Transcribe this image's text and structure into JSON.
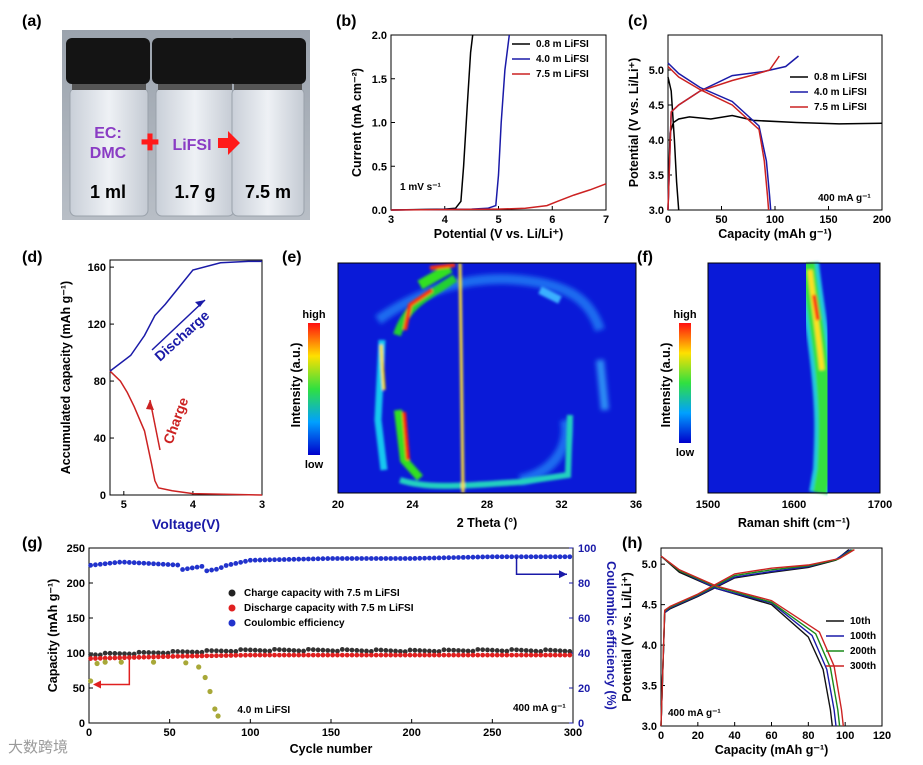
{
  "panel_labels": {
    "a": "(a)",
    "b": "(b)",
    "c": "(c)",
    "d": "(d)",
    "e": "(e)",
    "f": "(f)",
    "g": "(g)",
    "h": "(h)"
  },
  "photo": {
    "label_left": "EC:\nDMC",
    "label_mid": "LiFSI",
    "vial1": "1 ml",
    "vial2": "1.7 g",
    "vial3": "7.5 m",
    "colors": {
      "text": "#8a3cc4",
      "symbol": "#ff1a1a"
    }
  },
  "watermark": "大数跨境",
  "chart_data": [
    {
      "id": "b",
      "type": "line",
      "xlabel": "Potential (V vs. Li/Li⁺)",
      "ylabel": "Current (mA cm⁻²)",
      "xlim": [
        3,
        7
      ],
      "ylim": [
        0,
        2.0
      ],
      "xticks": [
        "3",
        "4",
        "5",
        "6",
        "7"
      ],
      "yticks": [
        "0.0",
        "0.5",
        "1.0",
        "1.5",
        "2.0"
      ],
      "annotation": "1 mV s⁻¹",
      "legend_position": "top-right",
      "series": [
        {
          "name": "0.8 m LiFSI",
          "color": "#000000",
          "x": [
            3,
            4.0,
            4.2,
            4.3,
            4.35,
            4.42,
            4.48,
            4.52
          ],
          "y": [
            0,
            0.01,
            0.02,
            0.1,
            0.5,
            1.2,
            1.8,
            2.0
          ]
        },
        {
          "name": "4.0 m LiFSI",
          "color": "#1a1aa8",
          "x": [
            3,
            4.5,
            4.8,
            4.95,
            5.0,
            5.05,
            5.12,
            5.2
          ],
          "y": [
            0,
            0.01,
            0.02,
            0.05,
            0.4,
            1.0,
            1.6,
            2.0
          ]
        },
        {
          "name": "7.5 m LiFSI",
          "color": "#cc2222",
          "x": [
            3,
            5.0,
            5.5,
            5.9,
            6.1,
            6.4,
            6.7,
            7.0
          ],
          "y": [
            0,
            0.01,
            0.02,
            0.05,
            0.1,
            0.17,
            0.23,
            0.3
          ]
        }
      ]
    },
    {
      "id": "c",
      "type": "line",
      "xlabel": "Capacity (mAh g⁻¹)",
      "ylabel": "Potential (V vs. Li/Li⁺)",
      "xlim": [
        0,
        200
      ],
      "ylim": [
        3.0,
        5.5
      ],
      "xticks": [
        "0",
        "50",
        "100",
        "150",
        "200"
      ],
      "yticks": [
        "3.0",
        "3.5",
        "4.0",
        "4.5",
        "5.0"
      ],
      "annotation": "400 mA g⁻¹",
      "legend_position": "top-right",
      "series": [
        {
          "name": "0.8 m LiFSI",
          "color": "#000000",
          "x": [
            0,
            2,
            5,
            10,
            20,
            40,
            60,
            80,
            120,
            160,
            200
          ],
          "y": [
            3.0,
            4.1,
            4.25,
            4.3,
            4.33,
            4.3,
            4.35,
            4.28,
            4.25,
            4.23,
            4.24
          ]
        },
        {
          "name": "0.8 m LiFSI discharge",
          "color": "#000000",
          "x": [
            0,
            3,
            6,
            8,
            10
          ],
          "y": [
            4.9,
            4.7,
            4.0,
            3.4,
            3.0
          ]
        },
        {
          "name": "4.0 m LiFSI",
          "color": "#1a1aa8",
          "x": [
            0,
            3,
            10,
            30,
            60,
            90,
            110,
            122
          ],
          "y": [
            3.0,
            4.4,
            4.5,
            4.7,
            4.92,
            4.98,
            5.05,
            5.2
          ]
        },
        {
          "name": "4.0 m LiFSI discharge",
          "color": "#1a1aa8",
          "x": [
            0,
            10,
            30,
            60,
            85,
            92,
            95,
            96
          ],
          "y": [
            5.1,
            4.95,
            4.75,
            4.55,
            4.2,
            3.7,
            3.2,
            3.0
          ]
        },
        {
          "name": "7.5 m LiFSI",
          "color": "#cc2222",
          "x": [
            0,
            3,
            10,
            30,
            60,
            80,
            95,
            104
          ],
          "y": [
            3.0,
            4.4,
            4.5,
            4.7,
            4.85,
            4.93,
            5.0,
            5.2
          ]
        },
        {
          "name": "7.5 m LiFSI discharge",
          "color": "#cc2222",
          "x": [
            0,
            10,
            30,
            60,
            85,
            90,
            93,
            94
          ],
          "y": [
            5.05,
            4.9,
            4.72,
            4.5,
            4.15,
            3.7,
            3.2,
            3.0
          ]
        }
      ],
      "legend": [
        "0.8 m LiFSI",
        "4.0 m LiFSI",
        "7.5 m LiFSI"
      ]
    },
    {
      "id": "d",
      "type": "line",
      "xlabel": "Voltage(V)",
      "ylabel": "Accumulated capacity (mAh g⁻¹)",
      "xlim": [
        5.2,
        3.0
      ],
      "ylim": [
        0,
        165
      ],
      "xticks": [
        "5",
        "4",
        "3"
      ],
      "yticks": [
        "0",
        "40",
        "80",
        "120",
        "160"
      ],
      "annotations": [
        "Discharge",
        "Charge"
      ],
      "series": [
        {
          "name": "Charge",
          "color": "#cc2222",
          "x": [
            3.0,
            4.0,
            4.3,
            4.5,
            4.55,
            4.6,
            4.7,
            4.85,
            4.95,
            5.05,
            5.2
          ],
          "y": [
            0,
            1,
            3,
            5,
            10,
            22,
            45,
            62,
            72,
            80,
            87
          ]
        },
        {
          "name": "Discharge",
          "color": "#1a1aa8",
          "x": [
            5.2,
            4.9,
            4.7,
            4.55,
            4.4,
            4.2,
            4.0,
            3.6,
            3.2,
            3.0
          ],
          "y": [
            87,
            98,
            112,
            126,
            134,
            146,
            158,
            163,
            164,
            164
          ]
        }
      ]
    },
    {
      "id": "e",
      "type": "heatmap",
      "xlabel": "2 Theta (°)",
      "ylabel": "Intensity (a.u.)",
      "xlim": [
        20,
        36
      ],
      "xticks": [
        "20",
        "24",
        "28",
        "32",
        "36"
      ],
      "colorbar": {
        "high": "high",
        "low": "low"
      }
    },
    {
      "id": "f",
      "type": "heatmap",
      "xlabel": "Raman shift (cm⁻¹)",
      "ylabel": "Intensity (a.u.)",
      "xlim": [
        1500,
        1700
      ],
      "xticks": [
        "1500",
        "1600",
        "1700"
      ],
      "colorbar": {
        "high": "high",
        "low": "low"
      }
    },
    {
      "id": "g",
      "type": "scatter",
      "xlabel": "Cycle number",
      "ylabel": "Capacity (mAh g⁻¹)",
      "y2label": "Coulombic efficiency (%)",
      "xlim": [
        0,
        300
      ],
      "ylim": [
        0,
        250
      ],
      "y2lim": [
        0,
        100
      ],
      "xticks": [
        "0",
        "50",
        "100",
        "150",
        "200",
        "250",
        "300"
      ],
      "yticks": [
        "0",
        "50",
        "100",
        "150",
        "200",
        "250"
      ],
      "y2ticks": [
        "0",
        "20",
        "40",
        "60",
        "80",
        "100"
      ],
      "annotation": "400 mA g⁻¹",
      "series_label_extra": "4.0 m LiFSI",
      "legend": [
        "Charge capacity with 7.5 m LiFSI",
        "Discharge capacity with 7.5 m LiFSI",
        "Coulombic efficiency"
      ],
      "legend_colors": [
        "#222222",
        "#e02020",
        "#2233cc"
      ],
      "charge_level": [
        [
          0,
          98
        ],
        [
          50,
          101
        ],
        [
          100,
          104
        ],
        [
          150,
          104
        ],
        [
          200,
          103
        ],
        [
          250,
          104
        ],
        [
          300,
          103
        ]
      ],
      "discharge_level": [
        [
          0,
          92
        ],
        [
          50,
          95
        ],
        [
          100,
          97
        ],
        [
          150,
          97
        ],
        [
          200,
          97
        ],
        [
          250,
          97
        ],
        [
          300,
          97
        ]
      ],
      "ce_level": [
        [
          0,
          90
        ],
        [
          20,
          92
        ],
        [
          60,
          90
        ],
        [
          80,
          89
        ],
        [
          100,
          93
        ],
        [
          150,
          94
        ],
        [
          200,
          94
        ],
        [
          250,
          95
        ],
        [
          300,
          95
        ]
      ],
      "lifsi4": [
        [
          1,
          60
        ],
        [
          5,
          85
        ],
        [
          10,
          87
        ],
        [
          20,
          87
        ],
        [
          40,
          87
        ],
        [
          60,
          86
        ],
        [
          68,
          80
        ],
        [
          72,
          65
        ],
        [
          75,
          45
        ],
        [
          78,
          20
        ],
        [
          80,
          10
        ]
      ]
    },
    {
      "id": "h",
      "type": "line",
      "xlabel": "Capacity (mAh g⁻¹)",
      "ylabel": "Potential (V vs. Li/Li⁺)",
      "xlim": [
        0,
        120
      ],
      "ylim": [
        3.0,
        5.2
      ],
      "xticks": [
        "0",
        "20",
        "40",
        "60",
        "80",
        "100",
        "120"
      ],
      "yticks": [
        "3.0",
        "3.5",
        "4.0",
        "4.5",
        "5.0"
      ],
      "annotation": "400 mA g⁻¹",
      "legend_position": "top-right",
      "series": [
        {
          "name": "10th",
          "color": "#111111",
          "xc": [
            0,
            2,
            5,
            20,
            40,
            60,
            80,
            95,
            102
          ],
          "yc": [
            3.0,
            4.4,
            4.45,
            4.6,
            4.83,
            4.9,
            4.96,
            5.05,
            5.18
          ],
          "xd": [
            0,
            10,
            30,
            60,
            80,
            88,
            92,
            93
          ],
          "yd": [
            5.1,
            4.9,
            4.7,
            4.5,
            4.1,
            3.7,
            3.2,
            3.0
          ]
        },
        {
          "name": "100th",
          "color": "#1a1aa8",
          "xc": [
            0,
            2,
            5,
            20,
            40,
            60,
            80,
            95,
            103
          ],
          "yc": [
            3.0,
            4.4,
            4.46,
            4.61,
            4.84,
            4.91,
            4.97,
            5.06,
            5.18
          ],
          "xd": [
            0,
            10,
            30,
            60,
            82,
            90,
            94,
            95
          ],
          "yd": [
            5.1,
            4.92,
            4.7,
            4.52,
            4.12,
            3.7,
            3.2,
            3.0
          ]
        },
        {
          "name": "200th",
          "color": "#1a8a1a",
          "xc": [
            0,
            2,
            5,
            20,
            40,
            60,
            80,
            96,
            104
          ],
          "yc": [
            3.0,
            4.42,
            4.47,
            4.62,
            4.86,
            4.93,
            4.98,
            5.06,
            5.18
          ],
          "xd": [
            0,
            10,
            30,
            60,
            84,
            92,
            96,
            97
          ],
          "yd": [
            5.1,
            4.92,
            4.72,
            4.53,
            4.14,
            3.72,
            3.2,
            3.0
          ]
        },
        {
          "name": "300th",
          "color": "#cc2222",
          "xc": [
            0,
            2,
            5,
            20,
            40,
            60,
            80,
            97,
            105
          ],
          "yc": [
            3.0,
            4.43,
            4.48,
            4.63,
            4.88,
            4.95,
            4.99,
            5.07,
            5.18
          ],
          "xd": [
            0,
            10,
            30,
            60,
            86,
            94,
            98,
            99
          ],
          "yd": [
            5.1,
            4.93,
            4.73,
            4.55,
            4.16,
            3.74,
            3.2,
            3.0
          ]
        }
      ]
    }
  ]
}
